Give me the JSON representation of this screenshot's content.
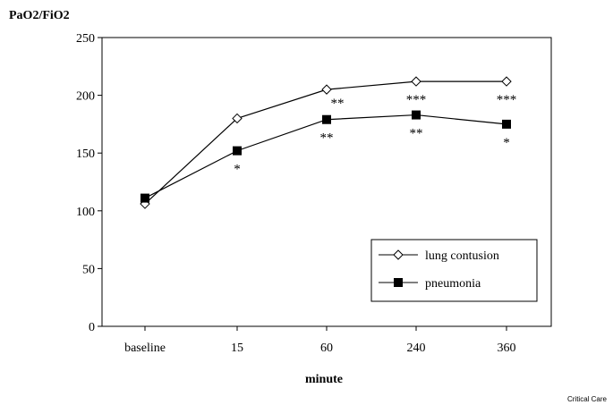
{
  "chart_data": {
    "type": "line",
    "ylabel": "PaO2/FiO2",
    "xlabel": "minute",
    "categories": [
      "baseline",
      "15",
      "60",
      "240",
      "360"
    ],
    "ylim": [
      0,
      250
    ],
    "yticks": [
      0,
      50,
      100,
      150,
      200,
      250
    ],
    "grid": false,
    "legend_position": "bottom-right",
    "series": [
      {
        "name": "lung contusion",
        "marker": "open-diamond",
        "values": [
          106,
          180,
          205,
          212,
          212
        ],
        "annotations": [
          "",
          "",
          "",
          "***",
          "***"
        ]
      },
      {
        "name": "pneumonia",
        "marker": "filled-square",
        "values": [
          111,
          152,
          179,
          183,
          175
        ],
        "annotations": [
          "",
          "*",
          "**",
          "**",
          "*"
        ]
      }
    ],
    "extra_annotations": [
      {
        "category": "60",
        "text": "**"
      }
    ]
  },
  "credit": "Critical Care"
}
